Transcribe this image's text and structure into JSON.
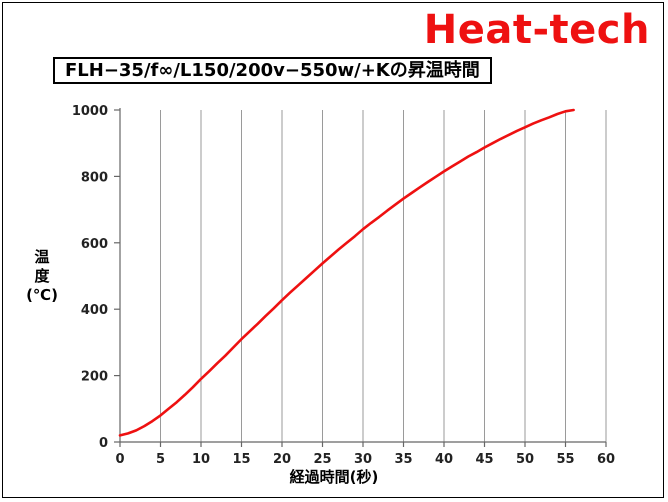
{
  "brand": {
    "text": "Heat-tech",
    "color": "#ee1111"
  },
  "chart_data": {
    "type": "line",
    "title": "FLH−35/f∞/L150/200v−550w/+Kの昇温時間",
    "xlabel": "経過時間(秒)",
    "ylabel_lines": [
      "温",
      "度",
      "(℃)"
    ],
    "xlim": [
      0,
      60
    ],
    "ylim": [
      0,
      1000
    ],
    "xticks": [
      0,
      5,
      10,
      15,
      20,
      25,
      30,
      35,
      40,
      45,
      50,
      55,
      60
    ],
    "yticks": [
      0,
      200,
      400,
      600,
      800,
      1000
    ],
    "grid": {
      "vertical": true,
      "horizontal": false
    },
    "series_color": "#ee1111",
    "x": [
      0,
      1,
      2,
      3,
      4,
      5,
      6,
      7,
      8,
      9,
      10,
      11,
      12,
      13,
      14,
      15,
      16,
      17,
      18,
      19,
      20,
      21,
      22,
      23,
      24,
      25,
      26,
      27,
      28,
      29,
      30,
      31,
      32,
      33,
      34,
      35,
      36,
      37,
      38,
      39,
      40,
      41,
      42,
      43,
      44,
      45,
      46,
      47,
      48,
      49,
      50,
      51,
      52,
      53,
      54,
      55,
      56
    ],
    "y": [
      20,
      26,
      35,
      48,
      63,
      80,
      100,
      120,
      142,
      165,
      190,
      213,
      237,
      260,
      285,
      310,
      333,
      356,
      380,
      403,
      427,
      450,
      472,
      494,
      516,
      538,
      559,
      580,
      600,
      620,
      641,
      660,
      678,
      697,
      715,
      733,
      750,
      767,
      783,
      799,
      815,
      830,
      845,
      860,
      873,
      887,
      900,
      913,
      925,
      937,
      948,
      959,
      969,
      978,
      988,
      996,
      1000
    ]
  }
}
